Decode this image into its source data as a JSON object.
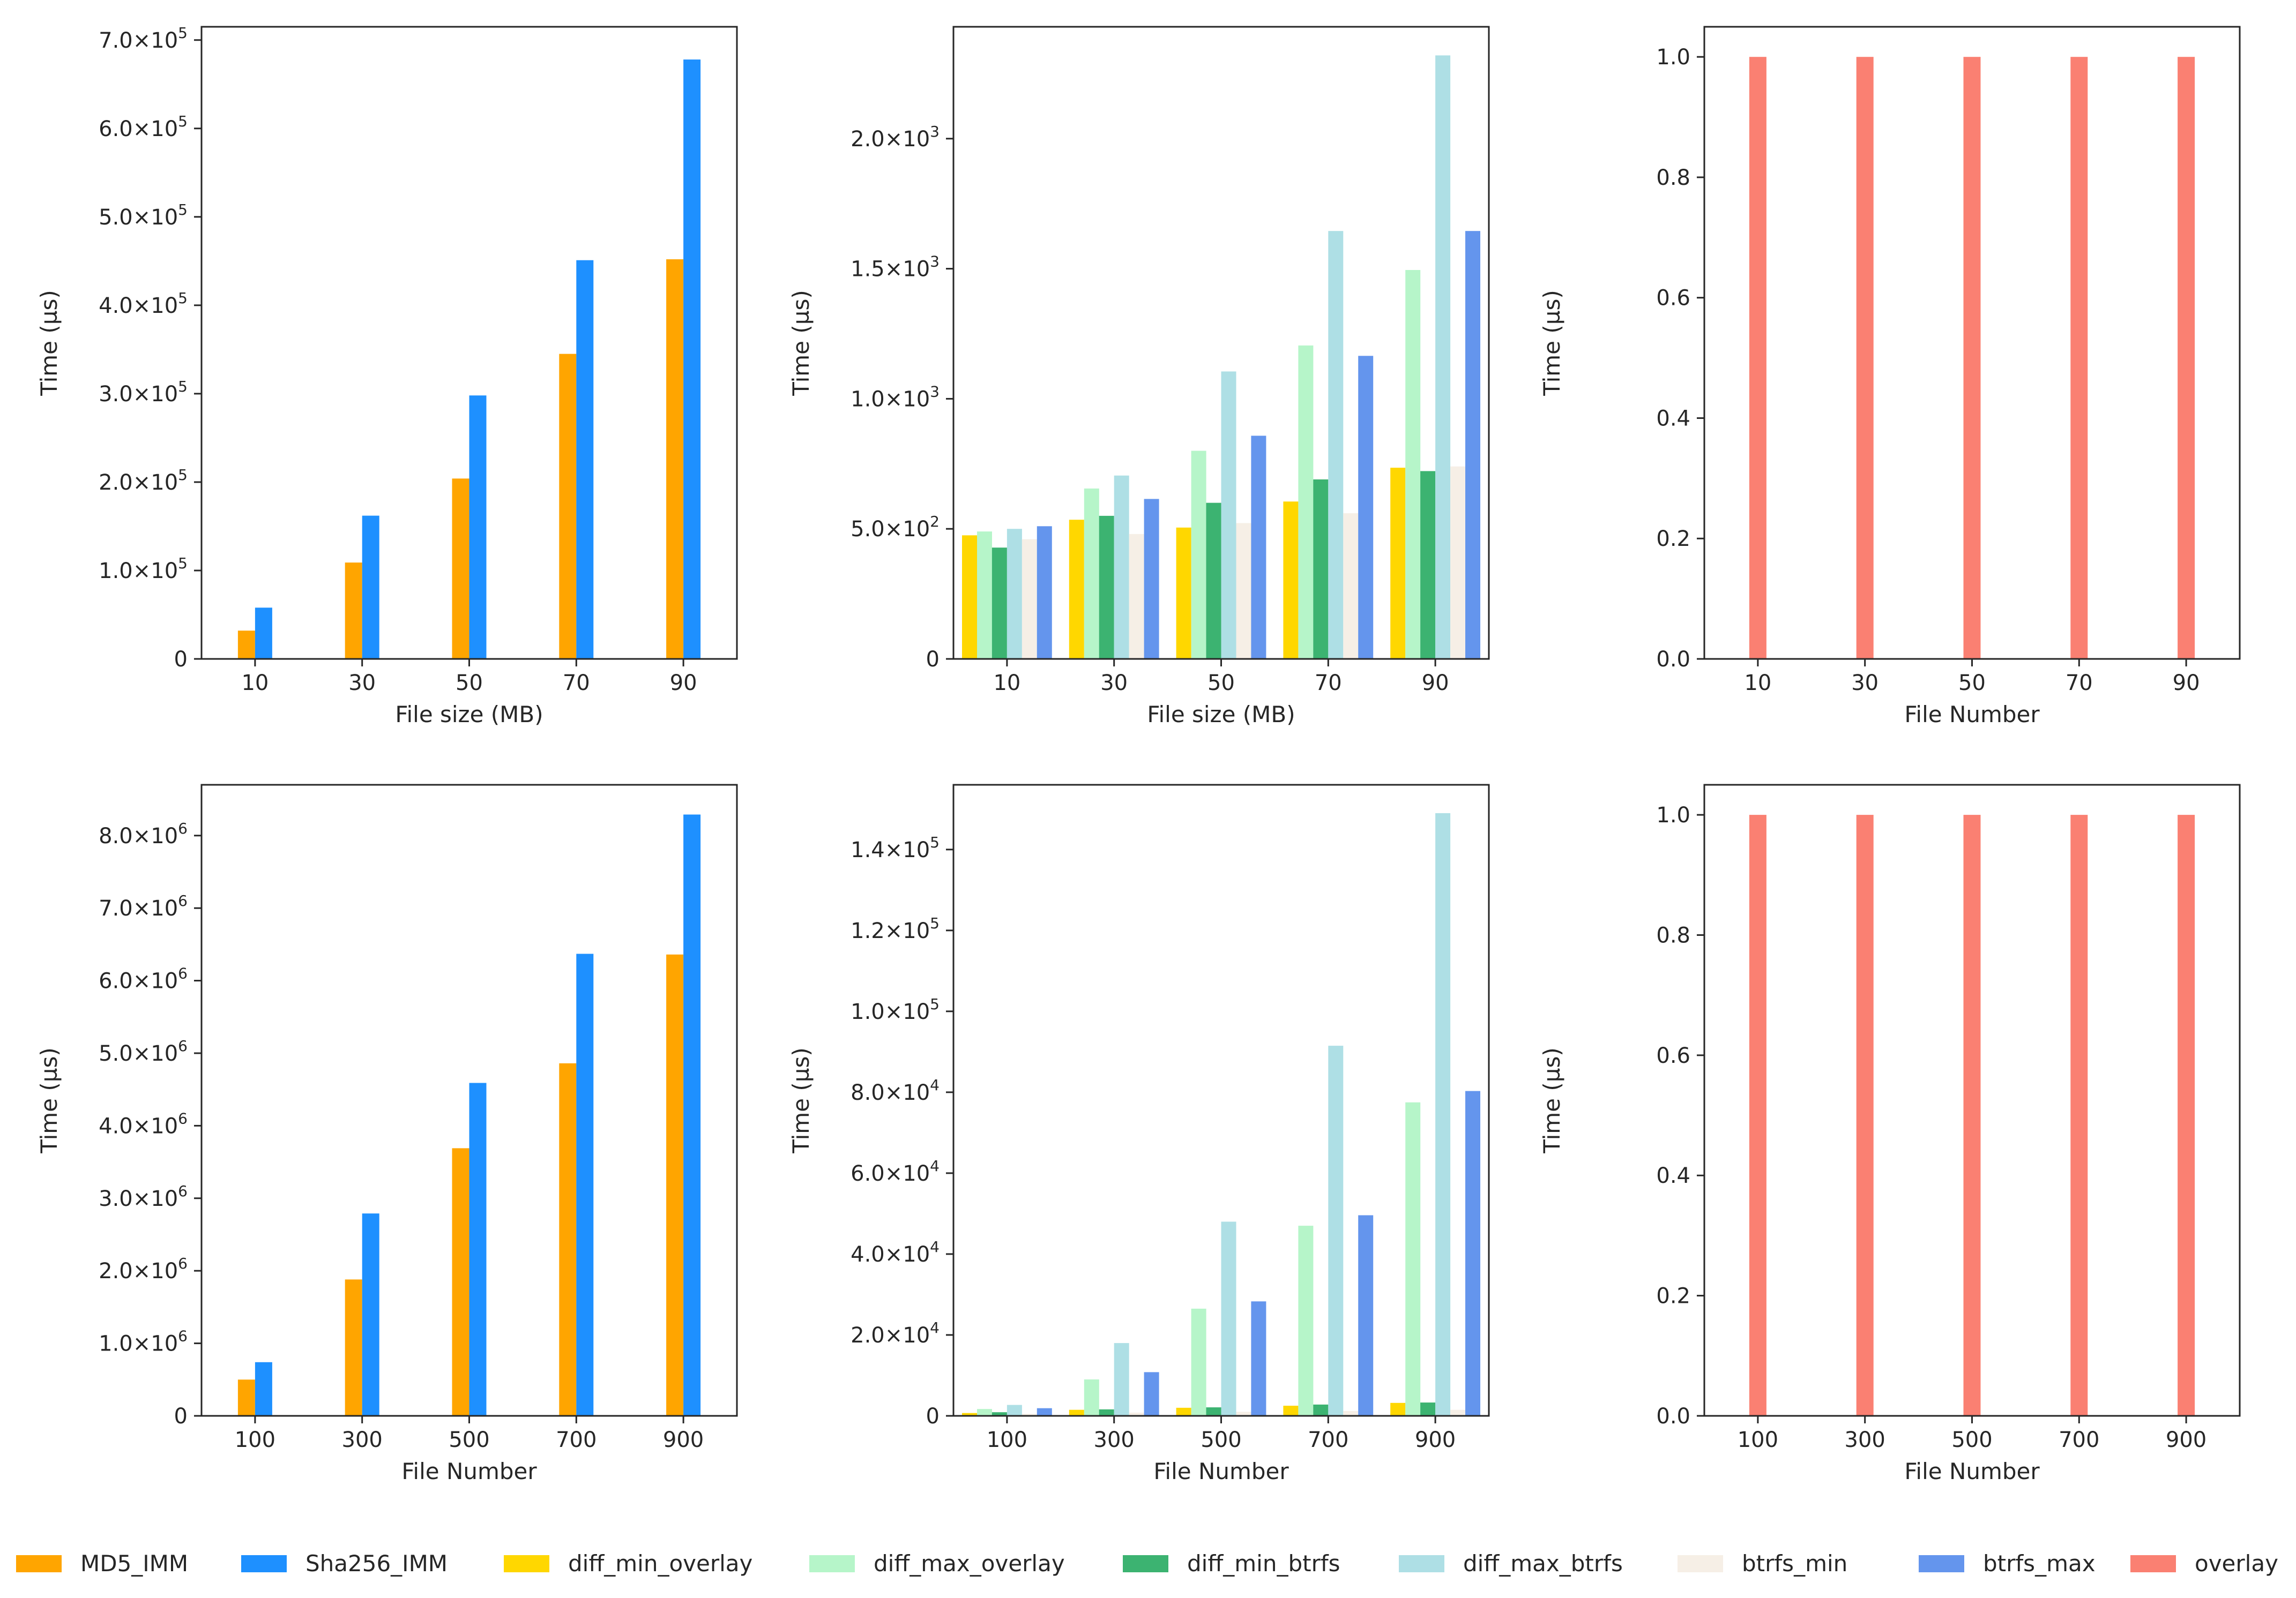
{
  "figure_title": "",
  "colors": {
    "MD5_IMM": "#ffa500",
    "Sha256_IMM": "#1e90ff",
    "diff_min_overlay": "#ffd700",
    "diff_max_overlay": "#b6f5c9",
    "diff_min_btrfs": "#3cb371",
    "diff_max_btrfs": "#aedfe5",
    "btrfs_min": "#f6efe6",
    "btrfs_max": "#6495ed",
    "overlay": "#fa8072"
  },
  "legend": {
    "items": [
      {
        "key": "MD5_IMM",
        "label": "MD5_IMM"
      },
      {
        "key": "Sha256_IMM",
        "label": "Sha256_IMM"
      },
      {
        "key": "diff_min_overlay",
        "label": "diff_min_overlay"
      },
      {
        "key": "diff_max_overlay",
        "label": "diff_max_overlay"
      },
      {
        "key": "diff_min_btrfs",
        "label": "diff_min_btrfs"
      },
      {
        "key": "diff_max_btrfs",
        "label": "diff_max_btrfs"
      },
      {
        "key": "btrfs_min",
        "label": "btrfs_min"
      },
      {
        "key": "btrfs_max",
        "label": "btrfs_max"
      },
      {
        "key": "overlay",
        "label": "overlay"
      }
    ]
  },
  "chart_data": [
    {
      "type": "bar",
      "id": "hash-by-size",
      "xlabel": "File size (MB)",
      "ylabel": "Time (µs)",
      "categories": [
        "10",
        "30",
        "50",
        "70",
        "90"
      ],
      "ylim": [
        0,
        715000
      ],
      "yticks": [
        {
          "value": 0,
          "mant": "0",
          "exp": ""
        },
        {
          "value": 100000,
          "mant": "1.0",
          "exp": "5"
        },
        {
          "value": 200000,
          "mant": "2.0",
          "exp": "5"
        },
        {
          "value": 300000,
          "mant": "3.0",
          "exp": "5"
        },
        {
          "value": 400000,
          "mant": "4.0",
          "exp": "5"
        },
        {
          "value": 500000,
          "mant": "5.0",
          "exp": "5"
        },
        {
          "value": 600000,
          "mant": "6.0",
          "exp": "5"
        },
        {
          "value": 700000,
          "mant": "7.0",
          "exp": "5"
        }
      ],
      "series": [
        {
          "name": "MD5_IMM",
          "values": [
            32000,
            109000,
            204000,
            345000,
            452000
          ]
        },
        {
          "name": "Sha256_IMM",
          "values": [
            58000,
            162000,
            298000,
            451000,
            678000
          ]
        }
      ]
    },
    {
      "type": "bar",
      "id": "diff-by-size",
      "xlabel": "File size (MB)",
      "ylabel": "Time (µs)",
      "categories": [
        "10",
        "30",
        "50",
        "70",
        "90"
      ],
      "ylim": [
        0,
        2430
      ],
      "yticks": [
        {
          "value": 0,
          "mant": "0",
          "exp": ""
        },
        {
          "value": 500,
          "mant": "5.0",
          "exp": "2"
        },
        {
          "value": 1000,
          "mant": "1.0",
          "exp": "3"
        },
        {
          "value": 1500,
          "mant": "1.5",
          "exp": "3"
        },
        {
          "value": 2000,
          "mant": "2.0",
          "exp": "3"
        }
      ],
      "series": [
        {
          "name": "diff_min_overlay",
          "values": [
            475,
            535,
            505,
            605,
            735
          ]
        },
        {
          "name": "diff_max_overlay",
          "values": [
            490,
            655,
            800,
            1205,
            1495
          ]
        },
        {
          "name": "diff_min_btrfs",
          "values": [
            428,
            550,
            600,
            690,
            722
          ]
        },
        {
          "name": "diff_max_btrfs",
          "values": [
            500,
            705,
            1105,
            1645,
            2320
          ]
        },
        {
          "name": "btrfs_min",
          "values": [
            460,
            480,
            522,
            560,
            740
          ]
        },
        {
          "name": "btrfs_max",
          "values": [
            510,
            615,
            858,
            1165,
            1645
          ]
        }
      ]
    },
    {
      "type": "bar",
      "id": "overlay-by-size",
      "xlabel": "File Number",
      "ylabel": "Time (µs)",
      "categories": [
        "10",
        "30",
        "50",
        "70",
        "90"
      ],
      "ylim": [
        0,
        1.05
      ],
      "yticks": [
        {
          "value": 0,
          "mant": "0.0",
          "exp": ""
        },
        {
          "value": 0.2,
          "mant": "0.2",
          "exp": ""
        },
        {
          "value": 0.4,
          "mant": "0.4",
          "exp": ""
        },
        {
          "value": 0.6,
          "mant": "0.6",
          "exp": ""
        },
        {
          "value": 0.8,
          "mant": "0.8",
          "exp": ""
        },
        {
          "value": 1.0,
          "mant": "1.0",
          "exp": ""
        }
      ],
      "series": [
        {
          "name": "overlay",
          "values": [
            1,
            1,
            1,
            1,
            1
          ]
        }
      ]
    },
    {
      "type": "bar",
      "id": "hash-by-number",
      "xlabel": "File Number",
      "ylabel": "Time (µs)",
      "categories": [
        "100",
        "300",
        "500",
        "700",
        "900"
      ],
      "ylim": [
        0,
        8700000
      ],
      "yticks": [
        {
          "value": 0,
          "mant": "0",
          "exp": ""
        },
        {
          "value": 1000000,
          "mant": "1.0",
          "exp": "6"
        },
        {
          "value": 2000000,
          "mant": "2.0",
          "exp": "6"
        },
        {
          "value": 3000000,
          "mant": "3.0",
          "exp": "6"
        },
        {
          "value": 4000000,
          "mant": "4.0",
          "exp": "6"
        },
        {
          "value": 5000000,
          "mant": "5.0",
          "exp": "6"
        },
        {
          "value": 6000000,
          "mant": "6.0",
          "exp": "6"
        },
        {
          "value": 7000000,
          "mant": "7.0",
          "exp": "6"
        },
        {
          "value": 8000000,
          "mant": "8.0",
          "exp": "6"
        }
      ],
      "series": [
        {
          "name": "MD5_IMM",
          "values": [
            500000,
            1880000,
            3690000,
            4860000,
            6360000
          ]
        },
        {
          "name": "Sha256_IMM",
          "values": [
            740000,
            2790000,
            4590000,
            6370000,
            8290000
          ]
        }
      ]
    },
    {
      "type": "bar",
      "id": "diff-by-number",
      "xlabel": "File Number",
      "ylabel": "Time (µs)",
      "categories": [
        "100",
        "300",
        "500",
        "700",
        "900"
      ],
      "ylim": [
        0,
        156000
      ],
      "yticks": [
        {
          "value": 0,
          "mant": "0",
          "exp": ""
        },
        {
          "value": 20000,
          "mant": "2.0",
          "exp": "4"
        },
        {
          "value": 40000,
          "mant": "4.0",
          "exp": "4"
        },
        {
          "value": 60000,
          "mant": "6.0",
          "exp": "4"
        },
        {
          "value": 80000,
          "mant": "8.0",
          "exp": "4"
        },
        {
          "value": 100000,
          "mant": "1.0",
          "exp": "5"
        },
        {
          "value": 120000,
          "mant": "1.2",
          "exp": "5"
        },
        {
          "value": 140000,
          "mant": "1.4",
          "exp": "5"
        }
      ],
      "series": [
        {
          "name": "diff_min_overlay",
          "values": [
            700,
            1500,
            2000,
            2500,
            3200
          ]
        },
        {
          "name": "diff_max_overlay",
          "values": [
            1700,
            9000,
            26500,
            47000,
            77500
          ]
        },
        {
          "name": "diff_min_btrfs",
          "values": [
            900,
            1600,
            2100,
            2800,
            3300
          ]
        },
        {
          "name": "diff_max_btrfs",
          "values": [
            2700,
            18000,
            48000,
            91500,
            149000
          ]
        },
        {
          "name": "btrfs_min",
          "values": [
            500,
            800,
            1000,
            1200,
            1500
          ]
        },
        {
          "name": "btrfs_max",
          "values": [
            1900,
            10800,
            28300,
            49600,
            80300
          ]
        }
      ]
    },
    {
      "type": "bar",
      "id": "overlay-by-number",
      "xlabel": "File Number",
      "ylabel": "Time (µs)",
      "categories": [
        "100",
        "300",
        "500",
        "700",
        "900"
      ],
      "ylim": [
        0,
        1.05
      ],
      "yticks": [
        {
          "value": 0,
          "mant": "0.0",
          "exp": ""
        },
        {
          "value": 0.2,
          "mant": "0.2",
          "exp": ""
        },
        {
          "value": 0.4,
          "mant": "0.4",
          "exp": ""
        },
        {
          "value": 0.6,
          "mant": "0.6",
          "exp": ""
        },
        {
          "value": 0.8,
          "mant": "0.8",
          "exp": ""
        },
        {
          "value": 1.0,
          "mant": "1.0",
          "exp": ""
        }
      ],
      "series": [
        {
          "name": "overlay",
          "values": [
            1,
            1,
            1,
            1,
            1
          ]
        }
      ]
    }
  ]
}
